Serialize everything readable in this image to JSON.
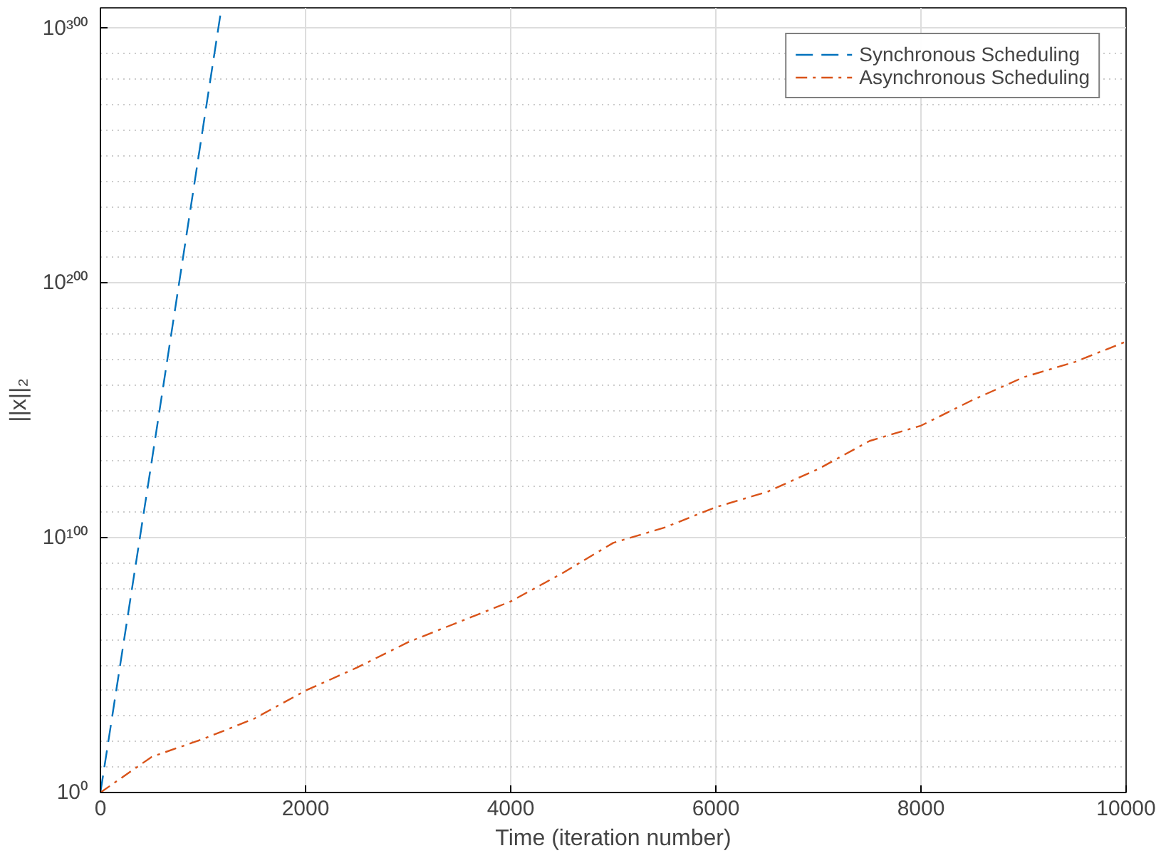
{
  "chart_data": {
    "type": "line",
    "xlabel": "Time (iteration number)",
    "ylabel": "||x||₂",
    "log": "y",
    "grid": true,
    "legend": "top right",
    "xlim": [
      0,
      10000
    ],
    "xticks": [
      0,
      2000,
      4000,
      6000,
      8000,
      10000
    ],
    "ylim": [
      1,
      1e+308
    ],
    "yticks": [
      {
        "value": 1,
        "label": "10⁰"
      },
      {
        "value": 1e+100,
        "label": "10¹⁰⁰"
      },
      {
        "value": 1e+200,
        "label": "10²⁰⁰"
      },
      {
        "value": 1e+300,
        "label": "10³⁰⁰"
      }
    ],
    "series": [
      {
        "name": "Synchronous Scheduling",
        "color": "#0072bd",
        "line_style": "dashed",
        "x": [
          0,
          500,
          1000,
          1180
        ],
        "values": [
          1,
          1e+130,
          1e+261,
          1e+308
        ]
      },
      {
        "name": "Asynchronous Scheduling",
        "color": "#d95319",
        "line_style": "dashdot",
        "x": [
          0,
          500,
          1000,
          1500,
          2000,
          2500,
          3000,
          3500,
          4000,
          4500,
          5000,
          5500,
          6000,
          6500,
          7000,
          7500,
          8000,
          8500,
          9000,
          9500,
          10000
        ],
        "values": [
          1,
          100000000000000.0,
          1e+21,
          1e+29,
          1e+40,
          1e+49,
          1e+59,
          1e+67,
          1e+75,
          1e+86,
          1e+98,
          1e+104,
          1e+112,
          1e+118,
          1e+127,
          1e+138,
          1e+144,
          1e+154,
          1e+163,
          1e+169,
          1e+177
        ]
      }
    ]
  }
}
